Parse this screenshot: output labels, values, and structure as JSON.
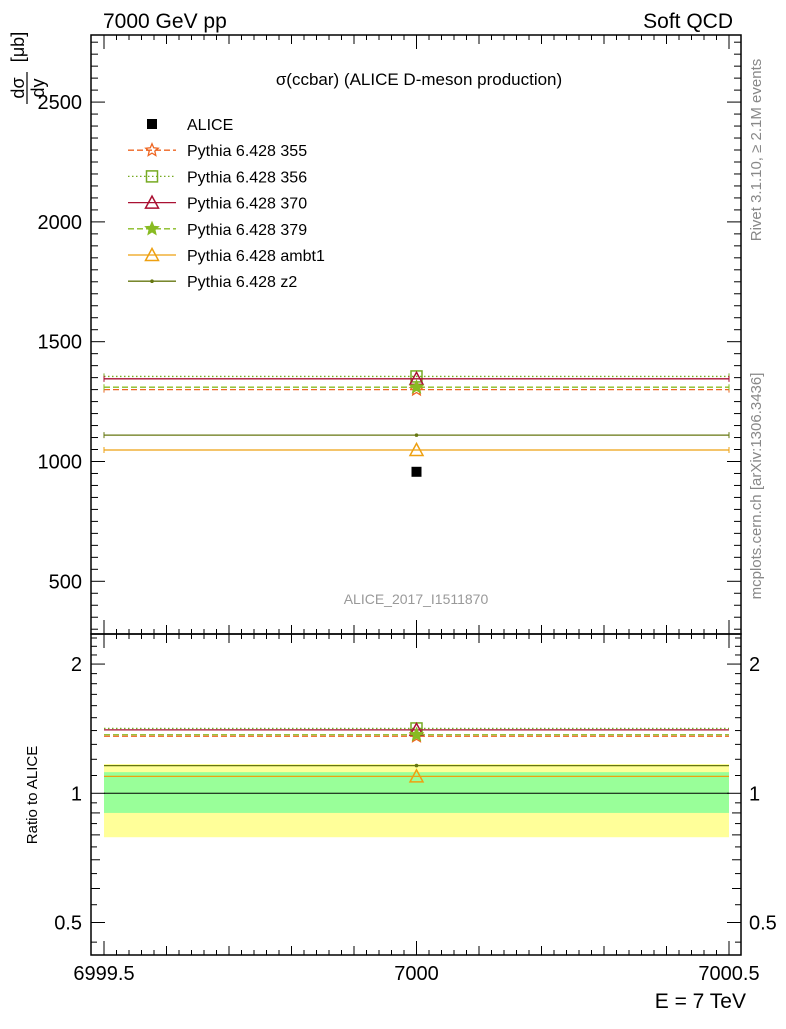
{
  "header": {
    "left": "7000 GeV pp",
    "right": "Soft QCD"
  },
  "side_text": {
    "rivet": "Rivet 3.1.10, ≥ 2.1M events",
    "mcplots": "mcplots.cern.ch [arXiv:1306.3436]"
  },
  "chart_data": {
    "type": "scatter",
    "title": "σ(ccbar) (ALICE D-meson production)",
    "watermark": "ALICE_2017_I1511870",
    "ylabel_num": "dσ",
    "ylabel_den": "dy",
    "ylabel_unit": "[μb]",
    "ratio_ylabel": "Ratio to ALICE",
    "xlabel": "E = 7 TeV",
    "xlim": [
      6999.5,
      7000.5
    ],
    "ylim": [
      280,
      2780
    ],
    "ratio_ylim": [
      0.42,
      2.35
    ],
    "x_ticks": [
      "6999.5",
      "7000",
      "7000.5"
    ],
    "y_ticks": [
      "500",
      "1000",
      "1500",
      "2000",
      "2500"
    ],
    "ratio_ticks": [
      "0.5",
      "1",
      "2"
    ],
    "colors": {
      "band_inner": "#99ff99",
      "band_outer": "#ffff99"
    },
    "ratio_band": {
      "inner": [
        0.9,
        1.12
      ],
      "outer": [
        0.79,
        1.17
      ]
    },
    "data": {
      "name": "ALICE",
      "x": 7000,
      "y": 957,
      "color": "#000000",
      "marker": "square"
    },
    "series": [
      {
        "name": "Pythia 6.428 355",
        "value": 1300,
        "ratio": 1.358,
        "color": "#ee6622",
        "dash": "6,3",
        "marker": "star-open"
      },
      {
        "name": "Pythia 6.428 356",
        "value": 1355,
        "ratio": 1.416,
        "color": "#77aa22",
        "dash": "1.5,2.5",
        "marker": "square-open"
      },
      {
        "name": "Pythia 6.428 370",
        "value": 1345,
        "ratio": 1.405,
        "color": "#aa1133",
        "dash": "",
        "marker": "triangle-open"
      },
      {
        "name": "Pythia 6.428 379",
        "value": 1310,
        "ratio": 1.369,
        "color": "#88bb22",
        "dash": "6,3",
        "marker": "star-filled"
      },
      {
        "name": "Pythia 6.428 ambt1",
        "value": 1048,
        "ratio": 1.095,
        "color": "#eea011",
        "dash": "",
        "marker": "triangle-open"
      },
      {
        "name": "Pythia 6.428 z2",
        "value": 1110,
        "ratio": 1.16,
        "color": "#667711",
        "dash": "",
        "marker": "dot"
      }
    ]
  }
}
